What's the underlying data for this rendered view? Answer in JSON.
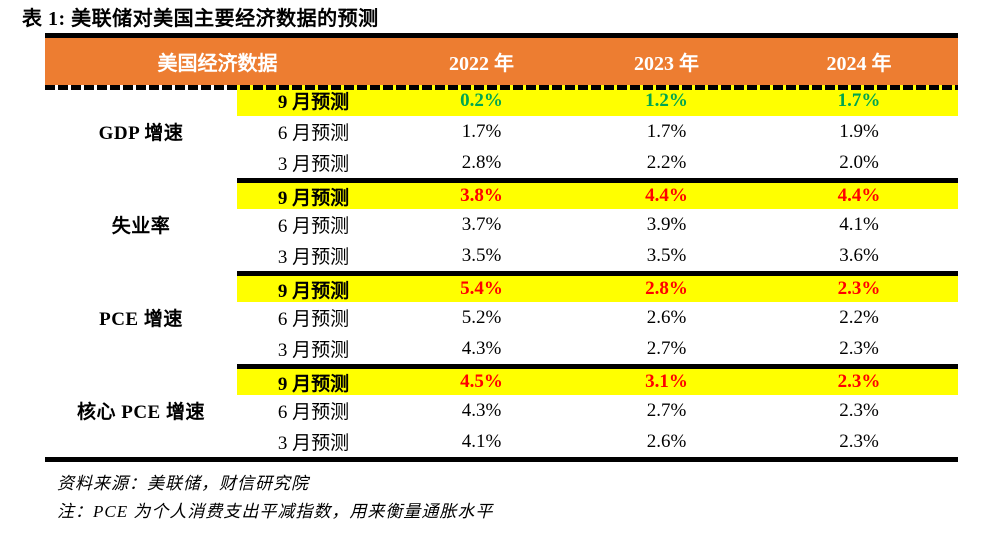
{
  "title": "表 1: 美联储对美国主要经济数据的预测",
  "table": {
    "header": {
      "col1": "美国经济数据",
      "years": [
        "2022 年",
        "2023 年",
        "2024 年"
      ]
    },
    "groups": [
      {
        "indicator": "GDP 增速",
        "rows": [
          {
            "month": "9 月预测",
            "values": [
              "0.2%",
              "1.2%",
              "1.7%"
            ],
            "highlight": true,
            "value_color": "green"
          },
          {
            "month": "6 月预测",
            "values": [
              "1.7%",
              "1.7%",
              "1.9%"
            ]
          },
          {
            "month": "3 月预测",
            "values": [
              "2.8%",
              "2.2%",
              "2.0%"
            ]
          }
        ]
      },
      {
        "indicator": "失业率",
        "rows": [
          {
            "month": "9 月预测",
            "values": [
              "3.8%",
              "4.4%",
              "4.4%"
            ],
            "highlight": true,
            "value_color": "red"
          },
          {
            "month": "6 月预测",
            "values": [
              "3.7%",
              "3.9%",
              "4.1%"
            ]
          },
          {
            "month": "3 月预测",
            "values": [
              "3.5%",
              "3.5%",
              "3.6%"
            ]
          }
        ]
      },
      {
        "indicator": "PCE 增速",
        "rows": [
          {
            "month": "9 月预测",
            "values": [
              "5.4%",
              "2.8%",
              "2.3%"
            ],
            "highlight": true,
            "value_color": "red"
          },
          {
            "month": "6 月预测",
            "values": [
              "5.2%",
              "2.6%",
              "2.2%"
            ]
          },
          {
            "month": "3 月预测",
            "values": [
              "4.3%",
              "2.7%",
              "2.3%"
            ]
          }
        ]
      },
      {
        "indicator": "核心 PCE 增速",
        "rows": [
          {
            "month": "9 月预测",
            "values": [
              "4.5%",
              "3.1%",
              "2.3%"
            ],
            "highlight": true,
            "value_color": "red"
          },
          {
            "month": "6 月预测",
            "values": [
              "4.3%",
              "2.7%",
              "2.3%"
            ]
          },
          {
            "month": "3 月预测",
            "values": [
              "4.1%",
              "2.6%",
              "2.3%"
            ]
          }
        ]
      }
    ]
  },
  "footer": {
    "source": "资料来源：美联储，财信研究院",
    "note": "注：PCE 为个人消费支出平减指数，用来衡量通胀水平"
  },
  "colors": {
    "header_bg": "#ED7D31",
    "header_text": "#FFFFFF",
    "highlight_bg": "#FFFF00",
    "green": "#00A650",
    "red": "#FF0000"
  }
}
